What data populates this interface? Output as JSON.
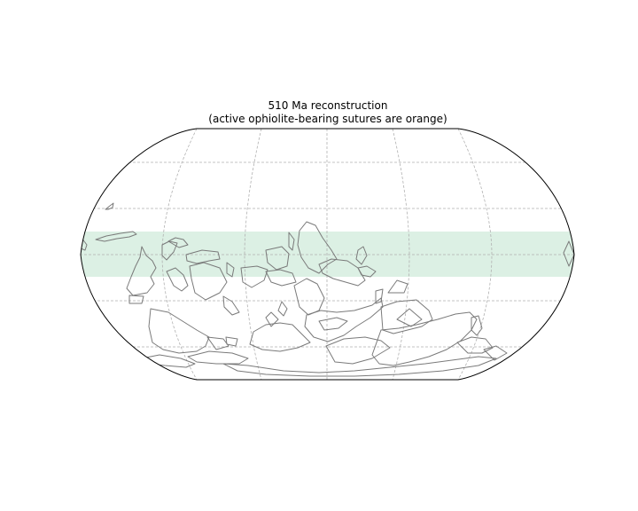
{
  "map": {
    "title": "510 Ma reconstruction",
    "subtitle": "(active ophiolite-bearing sutures are orange)",
    "projection": "Robinson",
    "band_color": "#dcf0e4",
    "coastline_color": "#7a7a7a",
    "graticule_color": "#b0b0b0",
    "outline_color": "#000000"
  }
}
